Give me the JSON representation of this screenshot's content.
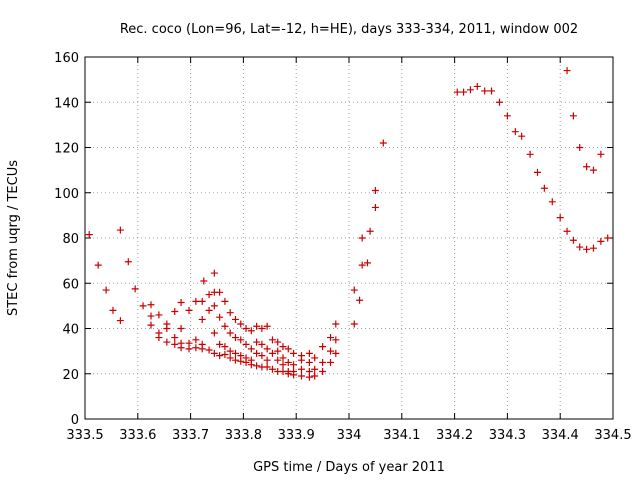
{
  "chart_data": {
    "type": "scatter",
    "title": "Rec. coco (Lon=96, Lat=-12, h=HE), days 333-334, 2011, window 002",
    "xlabel": "GPS time / Days of year 2011",
    "ylabel": "STEC from uqrg / TECUs",
    "xlim": [
      333.5,
      334.5
    ],
    "ylim": [
      0,
      160
    ],
    "xticks": [
      333.5,
      333.6,
      333.7,
      333.8,
      333.9,
      334.0,
      334.1,
      334.2,
      334.3,
      334.4,
      334.5
    ],
    "xtick_labels": [
      "333.5",
      "333.6",
      "333.7",
      "333.8",
      "333.9",
      "334",
      "334.1",
      "334.2",
      "334.3",
      "334.4",
      "334.5"
    ],
    "yticks": [
      0,
      20,
      40,
      60,
      80,
      100,
      120,
      140,
      160
    ],
    "ytick_labels": [
      "0",
      "20",
      "40",
      "60",
      "80",
      "100",
      "120",
      "140",
      "160"
    ],
    "grid": true,
    "marker": "plus",
    "color": "#cc0000",
    "series": [
      {
        "points": [
          [
            333.508,
            81.5
          ],
          [
            333.525,
            68
          ],
          [
            333.54,
            57
          ],
          [
            333.553,
            48
          ],
          [
            333.567,
            83.5
          ],
          [
            333.567,
            43.5
          ],
          [
            333.582,
            69.5
          ],
          [
            333.595,
            57.5
          ],
          [
            333.61,
            50
          ],
          [
            333.625,
            50.5
          ],
          [
            333.625,
            45.5
          ],
          [
            333.625,
            41.5
          ],
          [
            333.64,
            46
          ],
          [
            333.64,
            38
          ],
          [
            333.64,
            36
          ],
          [
            333.655,
            42
          ],
          [
            333.655,
            40
          ],
          [
            333.655,
            34
          ],
          [
            333.67,
            47.5
          ],
          [
            333.67,
            36
          ],
          [
            333.67,
            33
          ],
          [
            333.682,
            51.5
          ],
          [
            333.682,
            40
          ],
          [
            333.682,
            33.5
          ],
          [
            333.682,
            31.5
          ],
          [
            333.697,
            48
          ],
          [
            333.697,
            33.5
          ],
          [
            333.697,
            31
          ],
          [
            333.71,
            52
          ],
          [
            333.71,
            35
          ],
          [
            333.71,
            31.5
          ],
          [
            333.722,
            52
          ],
          [
            333.722,
            44
          ],
          [
            333.722,
            33
          ],
          [
            333.722,
            31
          ],
          [
            333.725,
            61
          ],
          [
            333.735,
            55
          ],
          [
            333.735,
            48
          ],
          [
            333.735,
            30.5
          ],
          [
            333.745,
            64.5
          ],
          [
            333.745,
            56
          ],
          [
            333.745,
            50
          ],
          [
            333.745,
            38
          ],
          [
            333.745,
            29
          ],
          [
            333.755,
            56
          ],
          [
            333.755,
            45
          ],
          [
            333.755,
            33
          ],
          [
            333.755,
            28
          ],
          [
            333.765,
            52
          ],
          [
            333.765,
            41
          ],
          [
            333.765,
            32
          ],
          [
            333.765,
            28.5
          ],
          [
            333.775,
            47
          ],
          [
            333.775,
            38
          ],
          [
            333.775,
            30
          ],
          [
            333.775,
            27
          ],
          [
            333.785,
            44
          ],
          [
            333.785,
            36
          ],
          [
            333.785,
            29
          ],
          [
            333.785,
            26
          ],
          [
            333.795,
            42
          ],
          [
            333.795,
            35
          ],
          [
            333.795,
            28
          ],
          [
            333.795,
            25.5
          ],
          [
            333.805,
            40
          ],
          [
            333.805,
            33
          ],
          [
            333.805,
            27
          ],
          [
            333.805,
            25
          ],
          [
            333.815,
            39
          ],
          [
            333.815,
            31
          ],
          [
            333.815,
            26
          ],
          [
            333.815,
            24
          ],
          [
            333.825,
            41
          ],
          [
            333.825,
            34
          ],
          [
            333.825,
            29
          ],
          [
            333.825,
            23.5
          ],
          [
            333.835,
            40
          ],
          [
            333.835,
            33
          ],
          [
            333.835,
            28
          ],
          [
            333.835,
            23
          ],
          [
            333.845,
            41
          ],
          [
            333.845,
            31
          ],
          [
            333.845,
            26
          ],
          [
            333.845,
            23
          ],
          [
            333.855,
            35
          ],
          [
            333.855,
            29
          ],
          [
            333.855,
            22
          ],
          [
            333.865,
            34
          ],
          [
            333.865,
            30
          ],
          [
            333.865,
            26
          ],
          [
            333.865,
            21
          ],
          [
            333.875,
            32
          ],
          [
            333.875,
            27
          ],
          [
            333.875,
            24
          ],
          [
            333.875,
            21
          ],
          [
            333.885,
            31
          ],
          [
            333.885,
            25
          ],
          [
            333.885,
            21
          ],
          [
            333.885,
            20
          ],
          [
            333.895,
            29
          ],
          [
            333.895,
            24
          ],
          [
            333.895,
            21
          ],
          [
            333.895,
            19.5
          ],
          [
            333.91,
            28
          ],
          [
            333.91,
            26
          ],
          [
            333.91,
            22
          ],
          [
            333.91,
            19
          ],
          [
            333.925,
            29
          ],
          [
            333.925,
            25
          ],
          [
            333.925,
            21
          ],
          [
            333.925,
            18.5
          ],
          [
            333.935,
            27
          ],
          [
            333.935,
            22
          ],
          [
            333.935,
            19
          ],
          [
            333.95,
            32
          ],
          [
            333.95,
            25
          ],
          [
            333.95,
            21
          ],
          [
            333.965,
            36
          ],
          [
            333.965,
            30
          ],
          [
            333.965,
            25
          ],
          [
            333.975,
            42
          ],
          [
            333.975,
            35
          ],
          [
            333.975,
            29
          ],
          [
            334.01,
            57
          ],
          [
            334.01,
            42
          ],
          [
            334.02,
            52.5
          ],
          [
            334.025,
            68
          ],
          [
            334.025,
            80
          ],
          [
            334.035,
            69
          ],
          [
            334.04,
            83
          ],
          [
            334.05,
            93.5
          ],
          [
            334.05,
            101
          ],
          [
            334.065,
            122
          ],
          [
            334.205,
            144.5
          ],
          [
            334.217,
            144.5
          ],
          [
            334.23,
            145.5
          ],
          [
            334.243,
            147
          ],
          [
            334.257,
            145
          ],
          [
            334.27,
            145
          ],
          [
            334.285,
            140
          ],
          [
            334.3,
            134
          ],
          [
            334.315,
            127
          ],
          [
            334.327,
            125
          ],
          [
            334.343,
            117
          ],
          [
            334.357,
            109
          ],
          [
            334.37,
            102
          ],
          [
            334.385,
            96
          ],
          [
            334.4,
            89
          ],
          [
            334.413,
            83
          ],
          [
            334.413,
            154
          ],
          [
            334.425,
            134
          ],
          [
            334.425,
            79
          ],
          [
            334.437,
            120
          ],
          [
            334.437,
            76
          ],
          [
            334.45,
            111.5
          ],
          [
            334.45,
            75
          ],
          [
            334.463,
            110
          ],
          [
            334.463,
            75.5
          ],
          [
            334.477,
            117
          ],
          [
            334.477,
            78.5
          ],
          [
            334.49,
            80
          ]
        ]
      }
    ]
  }
}
